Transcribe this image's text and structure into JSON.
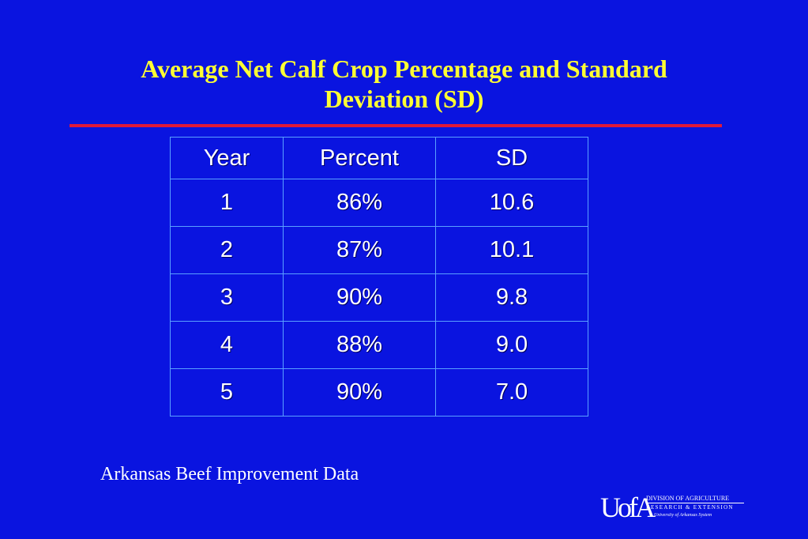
{
  "slide": {
    "title_line1": "Average Net Calf Crop Percentage and Standard",
    "title_line2": "Deviation (SD)",
    "source": "Arkansas Beef Improvement Data"
  },
  "table": {
    "headers": [
      "Year",
      "Percent",
      "SD"
    ],
    "rows": [
      [
        "1",
        "86%",
        "10.6"
      ],
      [
        "2",
        "87%",
        "10.1"
      ],
      [
        "3",
        "90%",
        "9.8"
      ],
      [
        "4",
        "88%",
        "9.0"
      ],
      [
        "5",
        "90%",
        "7.0"
      ]
    ]
  },
  "logo": {
    "mark": "UofA",
    "line1": "DIVISION OF AGRICULTURE",
    "line2": "RESEARCH & EXTENSION",
    "line3": "University of Arkansas System"
  },
  "colors": {
    "background": "#0a14e0",
    "title": "#ffff33",
    "rule": "#e0193a",
    "table_border": "#5aa0ff",
    "text": "#ffffff"
  }
}
